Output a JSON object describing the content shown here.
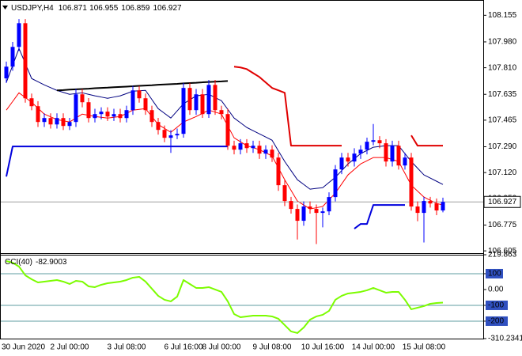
{
  "chart_data": [
    {
      "type": "candlestick",
      "title": "USDJPY,H4",
      "categories": [
        "30 Jun 2020",
        null,
        null,
        null,
        null,
        null,
        null,
        null,
        null,
        null,
        "2 Jul 00:00",
        null,
        null,
        null,
        null,
        null,
        null,
        null,
        null,
        "3 Jul 08:00",
        null,
        null,
        null,
        null,
        null,
        null,
        null,
        null,
        "6 Jul 16:00",
        null,
        null,
        null,
        null,
        null,
        "8 Jul 00:00",
        null,
        null,
        null,
        null,
        null,
        null,
        null,
        "9 Jul 08:00",
        null,
        null,
        null,
        null,
        null,
        null,
        null,
        "10 Jul 16:00",
        null,
        null,
        null,
        null,
        null,
        null,
        null,
        "14 Jul 00:00",
        null,
        null,
        null,
        null,
        null,
        null,
        null,
        "15 Jul 08:00",
        null,
        null,
        null
      ],
      "open": [
        107.74,
        107.817,
        107.947,
        108.103,
        107.609,
        107.557,
        107.453,
        107.479,
        107.437,
        107.479,
        107.427,
        107.453,
        107.635,
        107.583,
        107.479,
        107.505,
        107.521,
        107.489,
        107.505,
        107.479,
        107.531,
        107.661,
        107.609,
        107.531,
        107.453,
        107.401,
        107.349,
        107.365,
        107.375,
        107.677,
        107.531,
        107.635,
        107.505,
        107.697,
        107.531,
        107.505,
        107.297,
        107.271,
        107.313,
        107.281,
        107.297,
        107.245,
        107.271,
        107.219,
        107.037,
        106.933,
        106.881,
        106.803,
        106.897,
        106.881,
        106.855,
        106.865,
        106.959,
        107.141,
        107.219,
        107.193,
        107.245,
        107.271,
        107.323,
        107.333,
        107.313,
        107.193,
        107.297,
        107.167,
        107.219,
        106.897,
        106.855,
        106.933,
        106.917,
        106.871
      ],
      "high": [
        107.85,
        107.98,
        108.13,
        108.13,
        107.64,
        107.59,
        107.51,
        107.51,
        107.51,
        107.51,
        107.48,
        107.67,
        107.67,
        107.61,
        107.54,
        107.55,
        107.55,
        107.54,
        107.54,
        107.56,
        107.69,
        107.69,
        107.64,
        107.56,
        107.48,
        107.43,
        107.4,
        107.41,
        107.71,
        107.71,
        107.67,
        107.67,
        107.73,
        107.73,
        107.56,
        107.54,
        107.33,
        107.34,
        107.34,
        107.33,
        107.33,
        107.3,
        107.3,
        107.25,
        107.07,
        106.96,
        106.91,
        106.93,
        106.93,
        106.91,
        106.89,
        106.99,
        107.17,
        107.25,
        107.25,
        107.28,
        107.3,
        107.35,
        107.44,
        107.36,
        107.34,
        107.33,
        107.33,
        107.25,
        107.25,
        106.93,
        106.96,
        106.96,
        106.95,
        106.955
      ],
      "low": [
        107.71,
        107.79,
        107.92,
        107.58,
        107.53,
        107.42,
        107.42,
        107.41,
        107.41,
        107.4,
        107.4,
        107.42,
        107.55,
        107.45,
        107.45,
        107.47,
        107.46,
        107.46,
        107.45,
        107.45,
        107.5,
        107.58,
        107.5,
        107.42,
        107.37,
        107.32,
        107.25,
        107.34,
        107.35,
        107.5,
        107.5,
        107.48,
        107.48,
        107.5,
        107.47,
        107.27,
        107.24,
        107.24,
        107.25,
        107.25,
        107.21,
        107.21,
        107.19,
        107.0,
        106.9,
        106.85,
        106.68,
        106.77,
        106.85,
        106.65,
        106.76,
        106.84,
        106.93,
        107.11,
        107.16,
        107.16,
        107.21,
        107.24,
        107.3,
        107.28,
        107.16,
        107.16,
        107.14,
        107.14,
        106.87,
        106.8,
        106.66,
        106.89,
        106.84,
        106.859
      ],
      "close": [
        107.817,
        107.947,
        108.103,
        107.609,
        107.557,
        107.453,
        107.479,
        107.437,
        107.479,
        107.427,
        107.453,
        107.635,
        107.583,
        107.479,
        107.505,
        107.521,
        107.489,
        107.505,
        107.479,
        107.531,
        107.661,
        107.609,
        107.531,
        107.453,
        107.401,
        107.349,
        107.365,
        107.375,
        107.677,
        107.531,
        107.635,
        107.505,
        107.697,
        107.531,
        107.505,
        107.297,
        107.271,
        107.313,
        107.281,
        107.297,
        107.245,
        107.271,
        107.219,
        107.037,
        106.933,
        106.881,
        106.803,
        106.897,
        106.881,
        106.855,
        106.865,
        106.959,
        107.141,
        107.219,
        107.193,
        107.245,
        107.271,
        107.323,
        107.333,
        107.313,
        107.193,
        107.297,
        107.167,
        107.219,
        106.897,
        106.855,
        106.933,
        106.917,
        106.871,
        106.927
      ],
      "up_color": "#0000ff",
      "down_color": "#ff0000",
      "ylim": [
        106.59,
        108.24
      ],
      "yticks": [
        108.155,
        {
          "value": 107.98,
          "label": "107.980"
        },
        {
          "value": 107.81,
          "label": "107.810"
        },
        107.635,
        107.465,
        {
          "value": 107.29,
          "label": "107.290"
        },
        {
          "value": 107.12,
          "label": "107.120"
        },
        {
          "value": 106.95,
          "label": "106.950"
        },
        106.775,
        106.605
      ],
      "series": [
        {
          "color": "#000080",
          "width": 1,
          "values": [
            107.713,
            107.825,
            107.937,
            107.838,
            107.739,
            107.718,
            107.697,
            107.679,
            107.661,
            107.648,
            107.635,
            107.64,
            107.645,
            107.635,
            107.625,
            107.617,
            107.609,
            107.617,
            107.625,
            107.64,
            107.656,
            107.658,
            107.661,
            107.601,
            107.541,
            107.51,
            107.479,
            107.526,
            107.573,
            107.599,
            107.625,
            107.63,
            107.635,
            107.614,
            107.593,
            107.536,
            107.479,
            107.448,
            107.417,
            107.396,
            107.375,
            107.354,
            107.333,
            107.263,
            107.193,
            107.133,
            107.073,
            107.042,
            107.011,
            107.016,
            107.021,
            107.055,
            107.089,
            107.133,
            107.177,
            107.211,
            107.245,
            107.266,
            107.287,
            107.292,
            107.297,
            107.297,
            107.297,
            107.245,
            107.193,
            107.149,
            107.105,
            107.084,
            107.063,
            107.042
          ]
        },
        {
          "color": "#ff0000",
          "width": 1,
          "values": [
            107.531,
            107.588,
            107.645,
            107.614,
            107.583,
            107.544,
            107.505,
            107.487,
            107.469,
            107.461,
            107.453,
            107.479,
            107.505,
            107.497,
            107.489,
            107.484,
            107.479,
            107.484,
            107.489,
            107.51,
            107.531,
            107.536,
            107.541,
            107.489,
            107.437,
            107.411,
            107.385,
            107.419,
            107.453,
            107.471,
            107.489,
            107.51,
            107.531,
            107.518,
            107.505,
            107.427,
            107.349,
            107.323,
            107.297,
            107.284,
            107.271,
            107.25,
            107.229,
            107.151,
            107.073,
            107.003,
            106.933,
            106.907,
            106.881,
            106.889,
            106.897,
            106.941,
            106.985,
            107.045,
            107.105,
            107.141,
            107.177,
            107.198,
            107.219,
            107.219,
            107.219,
            107.206,
            107.193,
            107.115,
            107.037,
            106.998,
            106.959,
            106.938,
            106.917,
            106.907
          ]
        },
        {
          "color": "#e00000",
          "width": 2,
          "values": [
            null,
            null,
            null,
            null,
            null,
            null,
            null,
            null,
            null,
            null,
            null,
            null,
            null,
            null,
            null,
            null,
            null,
            null,
            null,
            null,
            null,
            null,
            null,
            null,
            null,
            null,
            null,
            null,
            null,
            null,
            null,
            null,
            null,
            null,
            null,
            null,
            107.817,
            107.812,
            107.801,
            107.775,
            107.749,
            107.713,
            107.677,
            107.661,
            107.645,
            107.297,
            107.297,
            107.297,
            107.297,
            107.297,
            107.297,
            107.297,
            107.297,
            107.297,
            null,
            null,
            null,
            null,
            null,
            null,
            null,
            null,
            null,
            null,
            107.365,
            107.297,
            107.297,
            107.297,
            107.297,
            107.297
          ]
        },
        {
          "color": "#0000dd",
          "width": 2,
          "values": [
            107.094,
            107.292,
            107.292,
            107.292,
            107.292,
            107.292,
            107.292,
            107.292,
            107.292,
            107.292,
            107.292,
            107.292,
            107.292,
            107.292,
            107.292,
            107.292,
            107.292,
            107.292,
            107.292,
            107.292,
            107.292,
            107.292,
            107.292,
            107.292,
            107.292,
            107.292,
            107.292,
            107.292,
            107.292,
            107.292,
            107.292,
            107.292,
            107.292,
            107.292,
            107.292,
            107.292,
            null,
            null,
            null,
            null,
            null,
            null,
            null,
            null,
            null,
            null,
            null,
            null,
            null,
            null,
            null,
            null,
            null,
            null,
            null,
            106.751,
            106.782,
            106.782,
            106.907,
            106.907,
            106.907,
            106.907,
            106.907,
            106.907,
            null,
            null,
            null,
            null,
            null,
            null
          ]
        },
        {
          "color": "#000000",
          "width": 2,
          "values": [
            null,
            null,
            null,
            null,
            null,
            null,
            null,
            null,
            107.661,
            107.663,
            107.666,
            107.668,
            107.67,
            107.672,
            107.675,
            107.677,
            107.679,
            107.682,
            107.684,
            107.686,
            107.688,
            107.691,
            107.693,
            107.695,
            107.698,
            107.7,
            107.702,
            107.704,
            107.707,
            107.709,
            107.711,
            107.714,
            107.716,
            107.718,
            107.72,
            107.723,
            null,
            null,
            null,
            null,
            null,
            null,
            null,
            null,
            null,
            null,
            null,
            null,
            null,
            null,
            null,
            null,
            null,
            null,
            null,
            null,
            null,
            null,
            null,
            null,
            null,
            null,
            null,
            null,
            null,
            null,
            null,
            null,
            null,
            null
          ]
        }
      ]
    },
    {
      "type": "line",
      "title": "CCI(40)",
      "ylim": [
        -310.2341,
        219.863
      ],
      "yticks": [
        219.863,
        100,
        {
          "value": 0,
          "label": "0.00"
        },
        -100,
        -200,
        -310.2341
      ],
      "levels": [
        100,
        -100,
        -200
      ],
      "level_color": "#5f9ea0",
      "level_box_color": "#3050c0",
      "series": [
        {
          "color": "#7cfc00",
          "width": 2,
          "values": [
            180,
            170,
            145,
            90,
            65,
            45,
            50,
            55,
            60,
            50,
            35,
            55,
            50,
            20,
            15,
            30,
            40,
            45,
            50,
            60,
            75,
            80,
            50,
            5,
            -40,
            -65,
            -75,
            -45,
            60,
            35,
            10,
            10,
            15,
            0,
            -15,
            -75,
            -155,
            -175,
            -170,
            -165,
            -165,
            -165,
            -170,
            -185,
            -225,
            -265,
            -275,
            -240,
            -190,
            -170,
            -160,
            -135,
            -65,
            -40,
            -25,
            -20,
            -15,
            -5,
            10,
            -5,
            -20,
            -15,
            -15,
            -65,
            -125,
            -115,
            -105,
            -90,
            -85,
            -82.9003
          ]
        }
      ]
    }
  ]
}
